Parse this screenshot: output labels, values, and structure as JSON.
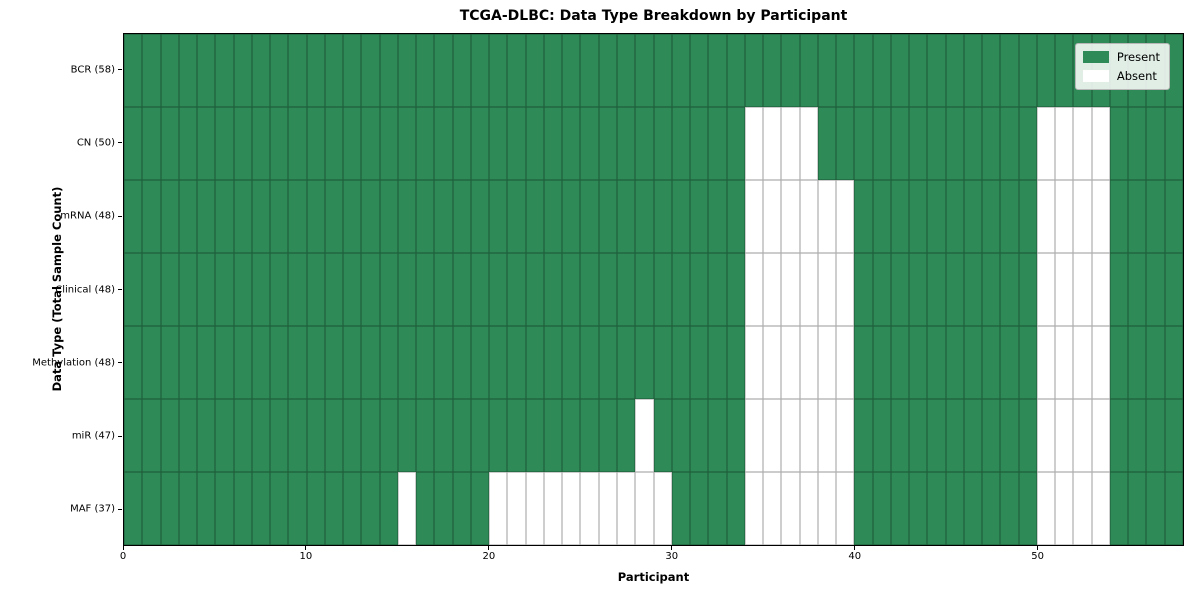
{
  "figure": {
    "background_color": "#ffffff"
  },
  "chart_data": {
    "type": "heatmap",
    "title": "TCGA-DLBC: Data Type Breakdown by Participant",
    "xlabel": "Participant",
    "ylabel": "Data Type (Total Sample Count)",
    "x_range": [
      0,
      58
    ],
    "x_ticks": [
      0,
      10,
      20,
      30,
      40,
      50
    ],
    "n_participants": 58,
    "grid": true,
    "legend_position": "upper right",
    "colors": {
      "present": "#2e8b57",
      "absent": "#ffffff",
      "gridline": "rgba(0,0,0,0.32)",
      "spine": "#000000"
    },
    "legend": [
      {
        "label": "Present",
        "value": "present",
        "color": "#2e8b57"
      },
      {
        "label": "Absent",
        "value": "absent",
        "color": "#ffffff"
      }
    ],
    "rows": [
      {
        "label": "BCR (58)",
        "data_type": "BCR",
        "total_samples": 58,
        "absent_participants": []
      },
      {
        "label": "CN (50)",
        "data_type": "CN",
        "total_samples": 50,
        "absent_participants": [
          34,
          35,
          36,
          37,
          50,
          51,
          52,
          53
        ]
      },
      {
        "label": "mRNA (48)",
        "data_type": "mRNA",
        "total_samples": 48,
        "absent_participants": [
          34,
          35,
          36,
          37,
          38,
          39,
          50,
          51,
          52,
          53
        ]
      },
      {
        "label": "Clinical (48)",
        "data_type": "Clinical",
        "total_samples": 48,
        "absent_participants": [
          34,
          35,
          36,
          37,
          38,
          39,
          50,
          51,
          52,
          53
        ]
      },
      {
        "label": "Methylation (48)",
        "data_type": "Methylation",
        "total_samples": 48,
        "absent_participants": [
          34,
          35,
          36,
          37,
          38,
          39,
          50,
          51,
          52,
          53
        ]
      },
      {
        "label": "miR (47)",
        "data_type": "miR",
        "total_samples": 47,
        "absent_participants": [
          28,
          34,
          35,
          36,
          37,
          38,
          39,
          50,
          51,
          52,
          53
        ]
      },
      {
        "label": "MAF (37)",
        "data_type": "MAF",
        "total_samples": 37,
        "absent_participants": [
          15,
          20,
          21,
          22,
          23,
          24,
          25,
          26,
          27,
          28,
          29,
          34,
          35,
          36,
          37,
          38,
          39,
          50,
          51,
          52,
          53
        ]
      }
    ]
  }
}
